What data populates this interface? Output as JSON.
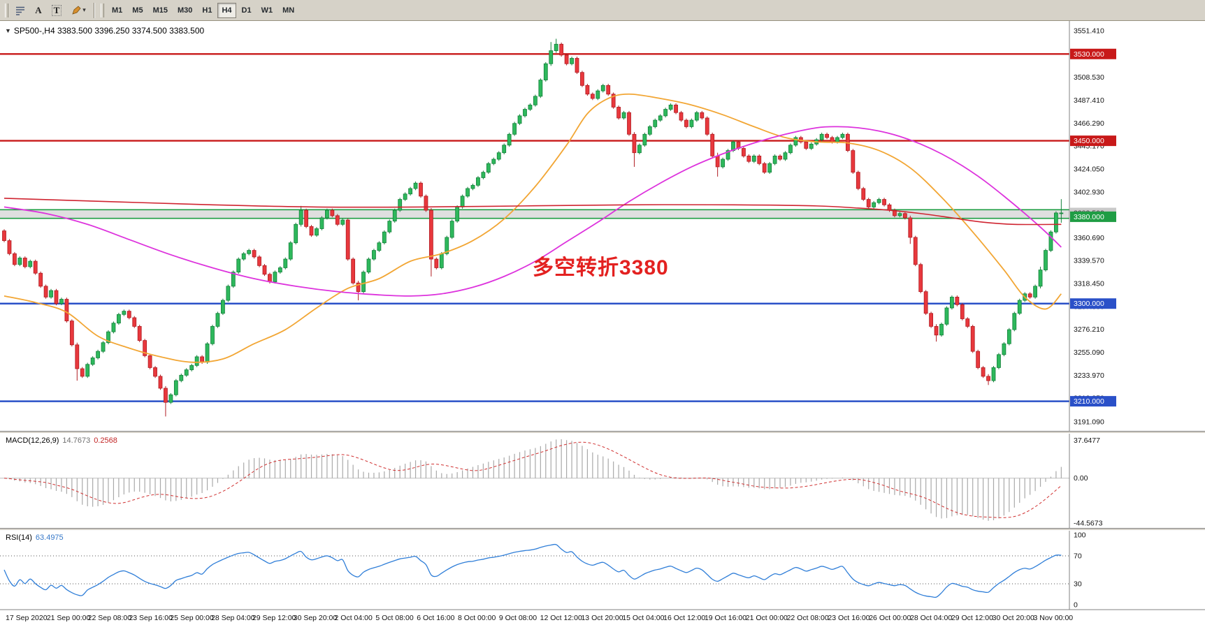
{
  "toolbar": {
    "icon_a": "A",
    "icon_t": "T",
    "timeframes": [
      {
        "label": "M1"
      },
      {
        "label": "M5"
      },
      {
        "label": "M15"
      },
      {
        "label": "M30"
      },
      {
        "label": "H1"
      },
      {
        "label": "H4"
      },
      {
        "label": "D1"
      },
      {
        "label": "W1"
      },
      {
        "label": "MN"
      }
    ],
    "active_timeframe": "H4"
  },
  "chart": {
    "symbol_ohlc_line": "SP500-,H4  3383.500 3396.250 3374.500 3383.500",
    "annotation": "多空转折3380"
  },
  "macd_panel": {
    "label": "MACD(12,26,9)",
    "main_value": "14.7673",
    "signal_value": "0.2568",
    "axis": [
      "37.6477",
      "0.00",
      "-44.5673"
    ]
  },
  "rsi_panel": {
    "label": "RSI(14)",
    "value": "63.4975",
    "axis": [
      "100",
      "70",
      "30",
      "0"
    ]
  },
  "time_axis": [
    "17 Sep 2020",
    "21 Sep 00:00",
    "22 Sep 08:00",
    "23 Sep 16:00",
    "25 Sep 00:00",
    "28 Sep 04:00",
    "29 Sep 12:00",
    "30 Sep 20:00",
    "2 Oct 04:00",
    "5 Oct 08:00",
    "6 Oct 16:00",
    "8 Oct 00:00",
    "9 Oct 08:00",
    "12 Oct 12:00",
    "13 Oct 20:00",
    "15 Oct 04:00",
    "16 Oct 12:00",
    "19 Oct 16:00",
    "21 Oct 00:00",
    "22 Oct 08:00",
    "23 Oct 16:00",
    "26 Oct 00:00",
    "28 Oct 04:00",
    "29 Oct 12:00",
    "30 Oct 20:00",
    "3 Nov 00:00"
  ],
  "chart_data": {
    "type": "candlestick",
    "symbol": "SP500-",
    "timeframe": "H4",
    "last_ohlc": {
      "open": 3383.5,
      "high": 3396.25,
      "low": 3374.5,
      "close": 3383.5
    },
    "first_open": 3367,
    "closes": [
      3358,
      3346,
      3336,
      3342,
      3334,
      3339,
      3328,
      3316,
      3306,
      3312,
      3300,
      3304,
      3284,
      3262,
      3240,
      3233,
      3244,
      3250,
      3256,
      3264,
      3274,
      3282,
      3290,
      3293,
      3287,
      3279,
      3266,
      3252,
      3241,
      3233,
      3222,
      3209,
      3216,
      3229,
      3234,
      3239,
      3243,
      3251,
      3246,
      3263,
      3279,
      3291,
      3303,
      3316,
      3329,
      3341,
      3346,
      3349,
      3343,
      3335,
      3327,
      3320,
      3329,
      3333,
      3341,
      3356,
      3373,
      3386,
      3371,
      3363,
      3369,
      3379,
      3386,
      3381,
      3373,
      3377,
      3341,
      3319,
      3311,
      3329,
      3341,
      3349,
      3356,
      3366,
      3376,
      3386,
      3396,
      3401,
      3406,
      3411,
      3399,
      3386,
      3341,
      3333,
      3346,
      3361,
      3376,
      3389,
      3399,
      3406,
      3409,
      3416,
      3421,
      3429,
      3433,
      3439,
      3446,
      3456,
      3466,
      3473,
      3479,
      3483,
      3491,
      3506,
      3521,
      3533,
      3539,
      3529,
      3521,
      3526,
      3513,
      3501,
      3493,
      3489,
      3496,
      3501,
      3493,
      3481,
      3471,
      3476,
      3456,
      3439,
      3446,
      3456,
      3463,
      3469,
      3473,
      3479,
      3483,
      3476,
      3469,
      3463,
      3469,
      3476,
      3471,
      3456,
      3436,
      3426,
      3433,
      3441,
      3449,
      3443,
      3436,
      3431,
      3436,
      3429,
      3421,
      3429,
      3436,
      3433,
      3439,
      3446,
      3453,
      3449,
      3443,
      3447,
      3451,
      3456,
      3453,
      3449,
      3453,
      3456,
      3441,
      3421,
      3406,
      3396,
      3389,
      3393,
      3396,
      3391,
      3386,
      3381,
      3383,
      3379,
      3361,
      3336,
      3311,
      3291,
      3279,
      3271,
      3281,
      3296,
      3306,
      3299,
      3286,
      3279,
      3256,
      3241,
      3233,
      3229,
      3241,
      3253,
      3263,
      3276,
      3291,
      3303,
      3309,
      3306,
      3316,
      3331,
      3349,
      3366,
      3383.5,
      3383.5
    ],
    "wick_overrides": {
      "14": [
        2,
        11
      ],
      "31": [
        2,
        13
      ],
      "57": [
        4,
        2
      ],
      "68": [
        2,
        8
      ],
      "82": [
        2,
        16
      ],
      "105": [
        8,
        2
      ],
      "106": [
        5,
        2
      ],
      "121": [
        2,
        13
      ],
      "137": [
        3,
        9
      ],
      "174": [
        2,
        6
      ],
      "179": [
        2,
        6
      ],
      "189": [
        2,
        4
      ],
      "199": [
        3,
        2
      ],
      "203": [
        12.75,
        9
      ]
    },
    "colors": {
      "up": "#2eb85c",
      "up_border": "#13813a",
      "down": "#e8383d",
      "down_border": "#b01c22"
    },
    "hlines": [
      {
        "price": 3530,
        "color": "#c81919",
        "width": 2.4
      },
      {
        "price": 3450,
        "color": "#c81919",
        "width": 2.4
      },
      {
        "price": 3300,
        "color": "#2a50c8",
        "width": 2.4
      },
      {
        "price": 3210,
        "color": "#2a50c8",
        "width": 2.4
      }
    ],
    "band": {
      "top": 3386.5,
      "bottom": 3378.5,
      "line_color": "#1f9d44",
      "fill": "#d9d9d9"
    },
    "moving_averages": [
      {
        "name": "ma-fast-orange",
        "color": "#f2a634",
        "width": 1.8,
        "points": [
          [
            0,
            3307
          ],
          [
            6,
            3301
          ],
          [
            12,
            3292
          ],
          [
            18,
            3270
          ],
          [
            24,
            3259
          ],
          [
            30,
            3251
          ],
          [
            36,
            3246
          ],
          [
            42,
            3249
          ],
          [
            48,
            3263
          ],
          [
            54,
            3276
          ],
          [
            60,
            3296
          ],
          [
            66,
            3314
          ],
          [
            72,
            3323
          ],
          [
            78,
            3339
          ],
          [
            84,
            3346
          ],
          [
            90,
            3358
          ],
          [
            96,
            3378
          ],
          [
            102,
            3408
          ],
          [
            108,
            3446
          ],
          [
            112,
            3475
          ],
          [
            116,
            3489
          ],
          [
            120,
            3493
          ],
          [
            126,
            3489
          ],
          [
            132,
            3483
          ],
          [
            138,
            3474
          ],
          [
            144,
            3463
          ],
          [
            150,
            3453
          ],
          [
            156,
            3449
          ],
          [
            162,
            3448
          ],
          [
            168,
            3441
          ],
          [
            174,
            3425
          ],
          [
            180,
            3398
          ],
          [
            186,
            3366
          ],
          [
            192,
            3331
          ],
          [
            196,
            3306
          ],
          [
            200,
            3295
          ],
          [
            203,
            3309
          ]
        ]
      },
      {
        "name": "ma-medium-magenta",
        "color": "#dd33dd",
        "width": 1.8,
        "points": [
          [
            0,
            3389
          ],
          [
            8,
            3383
          ],
          [
            16,
            3373
          ],
          [
            24,
            3359
          ],
          [
            32,
            3345
          ],
          [
            40,
            3333
          ],
          [
            48,
            3323
          ],
          [
            56,
            3316
          ],
          [
            64,
            3311
          ],
          [
            72,
            3308
          ],
          [
            78,
            3307
          ],
          [
            84,
            3309
          ],
          [
            90,
            3315
          ],
          [
            96,
            3325
          ],
          [
            102,
            3339
          ],
          [
            108,
            3357
          ],
          [
            114,
            3375
          ],
          [
            120,
            3394
          ],
          [
            126,
            3411
          ],
          [
            132,
            3426
          ],
          [
            138,
            3438
          ],
          [
            144,
            3448
          ],
          [
            150,
            3456
          ],
          [
            156,
            3462
          ],
          [
            160,
            3463
          ],
          [
            164,
            3462
          ],
          [
            168,
            3459
          ],
          [
            172,
            3454
          ],
          [
            176,
            3447
          ],
          [
            180,
            3438
          ],
          [
            184,
            3427
          ],
          [
            188,
            3414
          ],
          [
            192,
            3399
          ],
          [
            196,
            3383
          ],
          [
            200,
            3366
          ],
          [
            203,
            3352
          ]
        ]
      },
      {
        "name": "ma-slow-red",
        "color": "#cf2430",
        "width": 1.6,
        "points": [
          [
            0,
            3397
          ],
          [
            20,
            3394
          ],
          [
            40,
            3391
          ],
          [
            60,
            3389
          ],
          [
            80,
            3389
          ],
          [
            100,
            3390
          ],
          [
            120,
            3391
          ],
          [
            140,
            3391
          ],
          [
            156,
            3390
          ],
          [
            164,
            3388
          ],
          [
            170,
            3386
          ],
          [
            176,
            3383
          ],
          [
            182,
            3379
          ],
          [
            188,
            3375
          ],
          [
            194,
            3373
          ],
          [
            203,
            3373
          ]
        ]
      }
    ],
    "price_ticks": [
      "3551.410",
      "3529.650",
      "3508.530",
      "3487.410",
      "3466.290",
      "3445.170",
      "3424.050",
      "3402.930",
      "3381.810",
      "3360.690",
      "3339.570",
      "3318.450",
      "3297.330",
      "3276.210",
      "3255.090",
      "3233.970",
      "3212.850",
      "3191.090"
    ],
    "price_badges": [
      {
        "price": 3530,
        "text": "3530.000",
        "bg": "#c81919",
        "fg": "#ffffff"
      },
      {
        "price": 3450,
        "text": "3450.000",
        "bg": "#c81919",
        "fg": "#ffffff"
      },
      {
        "price": 3383.5,
        "text": "3383.500",
        "bg": "#c9c9c9",
        "fg": "#333333"
      },
      {
        "price": 3380,
        "text": "3380.000",
        "bg": "#1f9d44",
        "fg": "#ffffff"
      },
      {
        "price": 3300,
        "text": "3300.000",
        "bg": "#2a50c8",
        "fg": "#ffffff"
      },
      {
        "price": 3210,
        "text": "3210.000",
        "bg": "#2a50c8",
        "fg": "#ffffff"
      }
    ],
    "macd": {
      "fast": 12,
      "slow": 26,
      "signal": 9
    },
    "rsi_period": 14
  }
}
